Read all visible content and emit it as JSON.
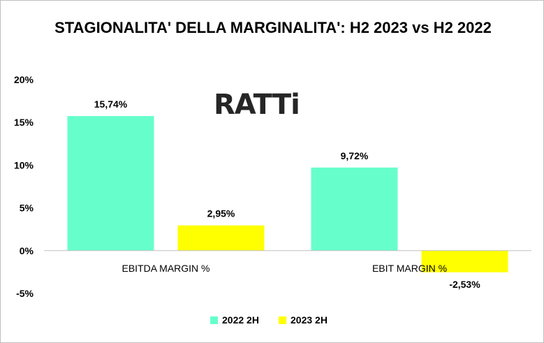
{
  "title": "STAGIONALITA' DELLA MARGINALITA': H2 2023 vs H2 2022",
  "logo_text": "RATTi",
  "colors": {
    "series_2022": "#66FFCC",
    "series_2023": "#FFFF00",
    "axis": "#bfbfbf",
    "logo": "#262626"
  },
  "chart_data": {
    "type": "bar",
    "title": "STAGIONALITA' DELLA MARGINALITA': H2 2023 vs H2 2022",
    "categories": [
      "EBITDA MARGIN %",
      "EBIT MARGIN %"
    ],
    "series": [
      {
        "name": "2022 2H",
        "values": [
          15.74,
          9.72
        ],
        "labels": [
          "15,74%",
          "9,72%"
        ],
        "color": "#66FFCC"
      },
      {
        "name": "2023 2H",
        "values": [
          2.95,
          -2.53
        ],
        "labels": [
          "2,95%",
          "-2,53%"
        ],
        "color": "#FFFF00"
      }
    ],
    "ylim": [
      -5,
      20
    ],
    "yticks": [
      20,
      15,
      10,
      5,
      0,
      -5
    ],
    "ytick_labels": [
      "20%",
      "15%",
      "10%",
      "5%",
      "0%",
      "-5%"
    ],
    "grid": false,
    "legend": "bottom"
  }
}
